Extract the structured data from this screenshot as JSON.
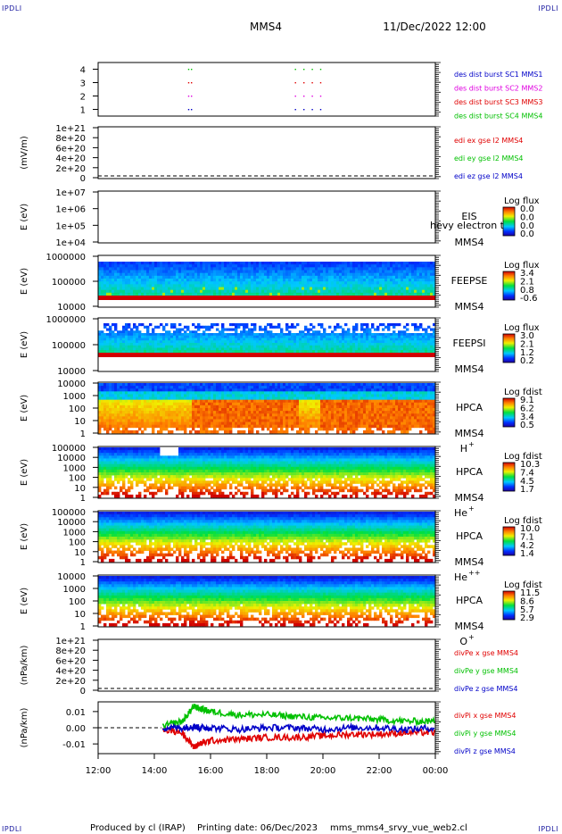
{
  "header": {
    "corner_label": "IPDLI",
    "mission": "MMS4",
    "datetime": "11/Dec/2022 12:00"
  },
  "footer": {
    "produced_by": "Produced by cl (IRAP)",
    "printing_date": "Printing date: 06/Dec/2023",
    "file": "mms_mms4_srvy_vue_web2.cl"
  },
  "colors": {
    "red": "#e00000",
    "green": "#00c000",
    "blue": "#0000c8",
    "magenta": "#e000e0"
  },
  "chart_data": [
    {
      "type": "scatter",
      "id": "burst",
      "ylabel": "",
      "yticks": [
        "1",
        "2",
        "3",
        "4"
      ],
      "ylim": [
        0.5,
        4.5
      ],
      "legend": [
        {
          "text": "des dist burst SC1 MMS1",
          "color": "#0000c8"
        },
        {
          "text": "des dist burst SC2 MMS2",
          "color": "#e000e0"
        },
        {
          "text": "des dist burst SC3 MMS3",
          "color": "#e00000"
        },
        {
          "text": "des dist burst SC4 MMS4",
          "color": "#00c000"
        }
      ],
      "series": [
        {
          "level": 4,
          "color": "#00c000",
          "hours": [
            15.2,
            15.3,
            19.0,
            19.3,
            19.6,
            19.9
          ]
        },
        {
          "level": 3,
          "color": "#e00000",
          "hours": [
            15.2,
            15.3,
            19.0,
            19.3,
            19.6,
            19.9
          ]
        },
        {
          "level": 2,
          "color": "#e000e0",
          "hours": [
            15.2,
            15.3,
            19.0,
            19.3,
            19.6,
            19.9
          ]
        },
        {
          "level": 1,
          "color": "#0000c8",
          "hours": [
            15.2,
            15.3,
            19.0,
            19.3,
            19.6,
            19.9
          ]
        }
      ]
    },
    {
      "type": "line",
      "id": "edi",
      "ylabel": "(mV/m)",
      "yticks": [
        "0",
        "2e+20",
        "4e+20",
        "6e+20",
        "8e+20",
        "1e+21"
      ],
      "ylim": [
        0,
        1e+21
      ],
      "legend": [
        {
          "text": "edi ex gse l2 MMS4",
          "color": "#e00000"
        },
        {
          "text": "edi ey gse l2 MMS4",
          "color": "#00c000"
        },
        {
          "text": "edi ez gse l2 MMS4",
          "color": "#0000c8"
        }
      ]
    },
    {
      "type": "heatmap",
      "id": "eis",
      "ylabel": "E (eV)",
      "yticks": [
        "1e+04",
        "1e+05",
        "1e+06",
        "1e+07"
      ],
      "instrument": [
        "EIS",
        "MMS4"
      ],
      "overlay_text": "hevy electron to",
      "colorbar": {
        "title": "Log flux",
        "ticks": [
          "0.0",
          "0.0",
          "0.0",
          "0.0"
        ]
      }
    },
    {
      "type": "heatmap",
      "id": "feepse",
      "ylabel": "E (eV)",
      "yticks": [
        "10000",
        "100000",
        "1000000"
      ],
      "instrument": [
        "FEEPSE",
        "MMS4"
      ],
      "colorbar": {
        "title": "Log flux",
        "ticks": [
          "3.4",
          "2.1",
          "0.8",
          "-0.6"
        ]
      }
    },
    {
      "type": "heatmap",
      "id": "feepsi",
      "ylabel": "E (eV)",
      "yticks": [
        "10000",
        "100000",
        "1000000"
      ],
      "instrument": [
        "FEEPSI",
        "MMS4"
      ],
      "colorbar": {
        "title": "Log flux",
        "ticks": [
          "3.0",
          "2.1",
          "1.2",
          "0.2"
        ]
      }
    },
    {
      "type": "heatmap",
      "id": "hpca_h",
      "ylabel": "E (eV)",
      "yticks": [
        "1",
        "10",
        "100",
        "1000",
        "10000"
      ],
      "instrument": [
        "HPCA",
        "MMS4"
      ],
      "species": "H",
      "charge": "+",
      "colorbar": {
        "title": "Log fdist",
        "ticks": [
          "9.1",
          "6.2",
          "3.4",
          "0.5"
        ]
      }
    },
    {
      "type": "heatmap",
      "id": "hpca_he",
      "ylabel": "E (eV)",
      "yticks": [
        "1",
        "10",
        "100",
        "1000",
        "10000",
        "100000"
      ],
      "instrument": [
        "HPCA",
        "MMS4"
      ],
      "species": "He",
      "charge": "+",
      "colorbar": {
        "title": "Log fdist",
        "ticks": [
          "10.3",
          "7.4",
          "4.5",
          "1.7"
        ]
      }
    },
    {
      "type": "heatmap",
      "id": "hpca_hepp",
      "ylabel": "E (eV)",
      "yticks": [
        "1",
        "10",
        "100",
        "1000",
        "10000",
        "100000"
      ],
      "instrument": [
        "HPCA",
        "MMS4"
      ],
      "species": "He",
      "charge": "++",
      "colorbar": {
        "title": "Log fdist",
        "ticks": [
          "10.0",
          "7.1",
          "4.2",
          "1.4"
        ]
      }
    },
    {
      "type": "heatmap",
      "id": "hpca_o",
      "ylabel": "E (eV)",
      "yticks": [
        "1",
        "10",
        "100",
        "1000",
        "10000"
      ],
      "instrument": [
        "HPCA",
        "MMS4"
      ],
      "species": "O",
      "charge": "+",
      "colorbar": {
        "title": "Log fdist",
        "ticks": [
          "11.5",
          "8.6",
          "5.7",
          "2.9"
        ]
      }
    },
    {
      "type": "line",
      "id": "divpe",
      "ylabel": "(nPa/km)",
      "yticks": [
        "0",
        "2e+20",
        "4e+20",
        "6e+20",
        "8e+20",
        "1e+21"
      ],
      "ylim": [
        0,
        1e+21
      ],
      "legend": [
        {
          "text": "divPe x gse MMS4",
          "color": "#e00000"
        },
        {
          "text": "divPe y gse MMS4",
          "color": "#00c000"
        },
        {
          "text": "divPe z gse MMS4",
          "color": "#0000c8"
        }
      ]
    },
    {
      "type": "line",
      "id": "divpi",
      "ylabel": "(nPa/km)",
      "yticks": [
        "-0.01",
        "0.00",
        "0.01"
      ],
      "ylim": [
        -0.016,
        0.016
      ],
      "legend": [
        {
          "text": "divPi x gse MMS4",
          "color": "#e00000"
        },
        {
          "text": "divPi y gse MMS4",
          "color": "#00c000"
        },
        {
          "text": "divPi z gse MMS4",
          "color": "#0000c8"
        }
      ],
      "data_start_hour": 14.25,
      "series": [
        {
          "name": "x",
          "color": "#e00000",
          "hours": [
            14.3,
            15.0,
            15.4,
            15.6,
            16.0,
            17.0,
            18.0,
            19.0,
            20.0,
            21.0,
            22.0,
            23.0,
            24.0
          ],
          "values": [
            -0.001,
            -0.003,
            -0.012,
            -0.01,
            -0.008,
            -0.007,
            -0.006,
            -0.006,
            -0.005,
            -0.004,
            -0.004,
            -0.003,
            -0.003
          ]
        },
        {
          "name": "y",
          "color": "#00c000",
          "hours": [
            14.3,
            15.0,
            15.4,
            15.6,
            16.0,
            17.0,
            18.0,
            19.0,
            20.0,
            21.0,
            22.0,
            23.0,
            24.0
          ],
          "values": [
            0.001,
            0.004,
            0.013,
            0.012,
            0.01,
            0.008,
            0.008,
            0.007,
            0.006,
            0.006,
            0.005,
            0.004,
            0.004
          ]
        },
        {
          "name": "z",
          "color": "#0000c8",
          "hours": [
            14.3,
            15.0,
            15.4,
            15.6,
            16.0,
            17.0,
            18.0,
            19.0,
            20.0,
            21.0,
            22.0,
            23.0,
            24.0
          ],
          "values": [
            0.0,
            0.0,
            0.001,
            0.0,
            0.0,
            -0.001,
            0.0,
            0.0,
            -0.001,
            0.0,
            0.0,
            -0.001,
            0.0
          ]
        }
      ]
    }
  ],
  "x_axis": {
    "ticks": [
      "12:00",
      "14:00",
      "16:00",
      "18:00",
      "20:00",
      "22:00",
      "00:00"
    ],
    "range_hours": [
      12,
      24
    ]
  }
}
